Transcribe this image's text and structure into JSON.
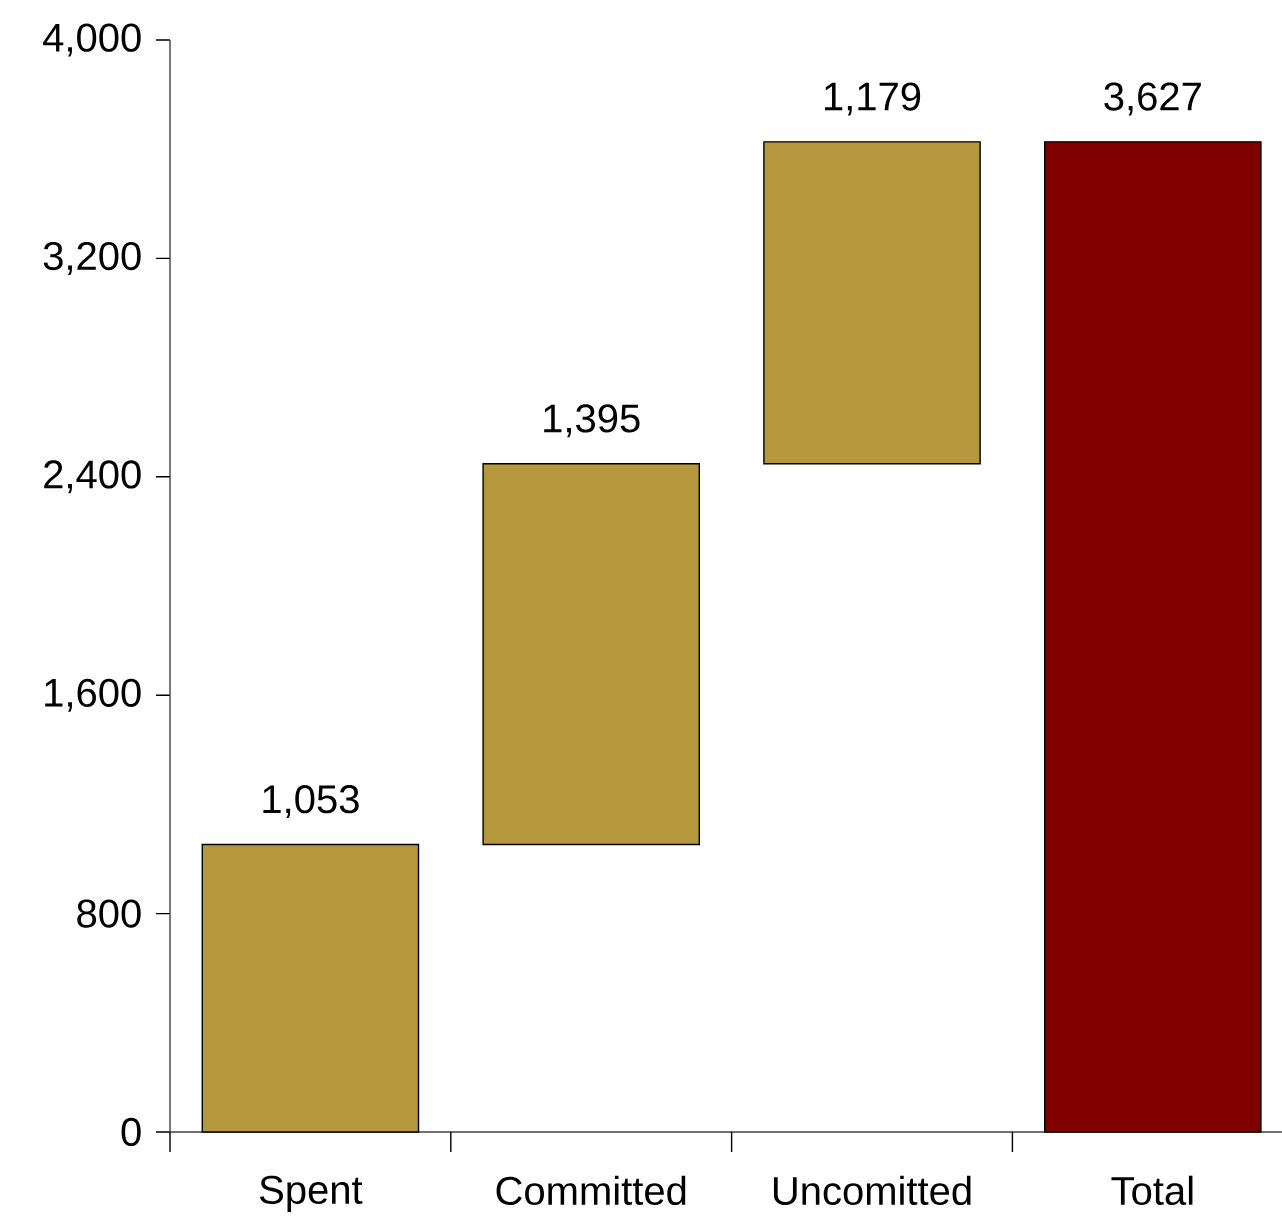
{
  "chart_data": {
    "type": "bar",
    "categories": [
      "Spent",
      "Committed",
      "Uncomitted",
      "Total"
    ],
    "values": [
      1053,
      1395,
      1179,
      3627
    ],
    "base": [
      0,
      1053,
      2448,
      0
    ],
    "colors": [
      "#b5973d",
      "#b5973d",
      "#b5973d",
      "#800000"
    ],
    "value_labels": [
      "1,053",
      "1,395",
      "1,179",
      "3,627"
    ],
    "ylim": [
      0,
      4000
    ],
    "yticks": [
      0,
      800,
      {
        "value": 1600,
        "label": "1,600"
      },
      {
        "value": 2400,
        "label": "2,400"
      },
      {
        "value": 3200,
        "label": "3,200"
      },
      {
        "value": 4000,
        "label": "4,000"
      }
    ]
  }
}
